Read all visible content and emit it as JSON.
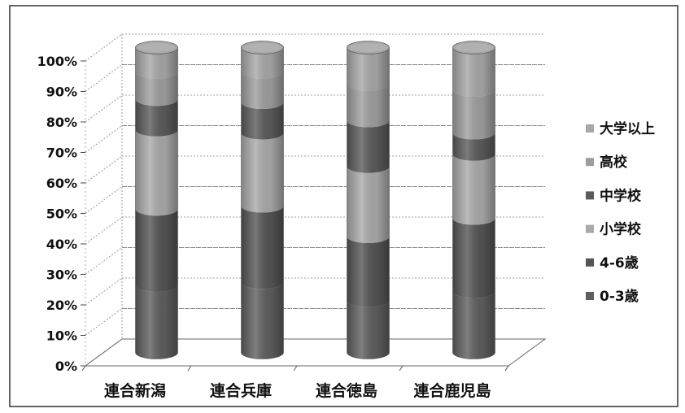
{
  "chart_data": {
    "type": "bar",
    "shape": "cylinder",
    "three_d": true,
    "stacking": "percent",
    "categories": [
      "連合新潟",
      "連合兵庫",
      "連合徳島",
      "連合鹿児島"
    ],
    "series": [
      {
        "name": "0-3歳",
        "values": [
          22,
          23,
          17,
          20
        ],
        "color": "#5e5e5e"
      },
      {
        "name": "4-6歳",
        "values": [
          25,
          25,
          21,
          24
        ],
        "color": "#545454"
      },
      {
        "name": "小学校",
        "values": [
          26,
          24,
          23,
          21
        ],
        "color": "#a9a9a9"
      },
      {
        "name": "中学校",
        "values": [
          10,
          10,
          15,
          7
        ],
        "color": "#5a5a5a"
      },
      {
        "name": "高校",
        "values": [
          9,
          10,
          12,
          14
        ],
        "color": "#9e9e9e"
      },
      {
        "name": "大学以上",
        "values": [
          8,
          8,
          12,
          14
        ],
        "color": "#a7a7a7"
      }
    ],
    "y_tick_labels": [
      "0%",
      "10%",
      "20%",
      "30%",
      "40%",
      "50%",
      "60%",
      "70%",
      "80%",
      "90%",
      "100%"
    ],
    "ylim": [
      0,
      100
    ],
    "grid": true,
    "legend_position": "right"
  }
}
